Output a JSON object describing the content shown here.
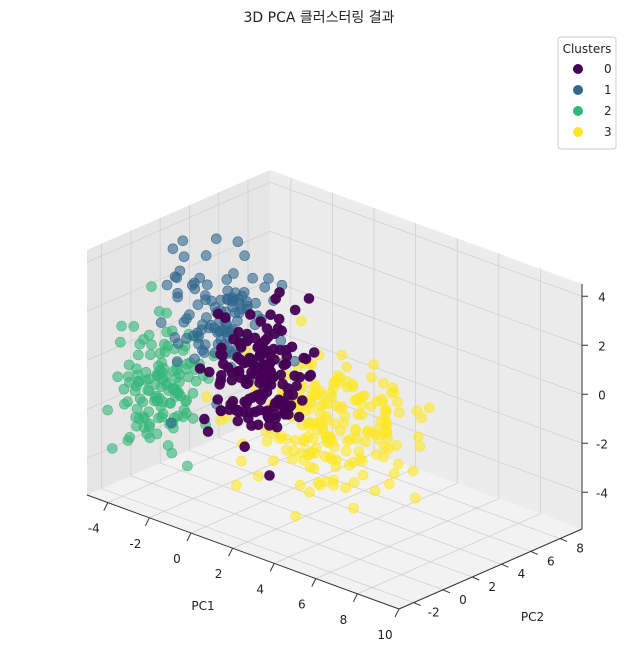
{
  "chart_data": {
    "type": "scatter",
    "projection": "3d",
    "title": "3D PCA 클러스터링 결과",
    "xlabel": "PC1",
    "ylabel": "PC2",
    "zlabel": "",
    "xlim": [
      -5,
      10
    ],
    "ylim": [
      -3,
      9.5
    ],
    "zlim": [
      -5.5,
      4.5
    ],
    "xticks": [
      -4,
      -2,
      0,
      2,
      4,
      6,
      8,
      10
    ],
    "xtick_labels": [
      "-4",
      "-2",
      "0",
      "2",
      "4",
      "6",
      "8",
      "10"
    ],
    "yticks": [
      -2,
      0,
      2,
      4,
      6,
      8
    ],
    "ytick_labels": [
      "-2",
      "0",
      "2",
      "4",
      "6",
      "8"
    ],
    "zticks": [
      -4,
      -2,
      0,
      2,
      4
    ],
    "ztick_labels": [
      "-4",
      "-2",
      "0",
      "2",
      "4"
    ],
    "grid": true,
    "legend": {
      "title": "Clusters",
      "placement": "top-right",
      "entries": [
        {
          "label": "0",
          "color": "#440154"
        },
        {
          "label": "1",
          "color": "#31688e"
        },
        {
          "label": "2",
          "color": "#35b779"
        },
        {
          "label": "3",
          "color": "#fde725"
        }
      ]
    },
    "series": [
      {
        "name": "0",
        "color": "#440154",
        "center": [
          0.5,
          1.0,
          0.0
        ],
        "spread": [
          0.9,
          1.2,
          1.2
        ],
        "count": 150,
        "sample_points": [
          [
            0.2,
            1.5,
            0.8
          ],
          [
            1.0,
            0.5,
            -0.5
          ],
          [
            -0.5,
            1.8,
            0.2
          ],
          [
            1.5,
            0.2,
            1.0
          ],
          [
            0.0,
            0.8,
            -1.2
          ]
        ]
      },
      {
        "name": "1",
        "color": "#31688e",
        "center": [
          -2.2,
          2.2,
          1.2
        ],
        "spread": [
          1.0,
          1.2,
          1.3
        ],
        "count": 110,
        "sample_points": [
          [
            -2.5,
            3.0,
            2.5
          ],
          [
            -1.8,
            1.5,
            1.0
          ],
          [
            -3.0,
            2.5,
            0.5
          ],
          [
            -2.0,
            3.5,
            3.5
          ],
          [
            -1.2,
            2.0,
            1.8
          ]
        ]
      },
      {
        "name": "2",
        "color": "#35b779",
        "center": [
          -3.2,
          -0.8,
          -1.0
        ],
        "spread": [
          0.9,
          1.0,
          1.2
        ],
        "count": 130,
        "sample_points": [
          [
            -3.5,
            -1.5,
            -1.5
          ],
          [
            -2.8,
            0.0,
            -0.5
          ],
          [
            -4.0,
            -1.0,
            -2.2
          ],
          [
            -3.0,
            -0.5,
            0.3
          ],
          [
            -2.5,
            -1.8,
            -1.0
          ]
        ]
      },
      {
        "name": "3",
        "color": "#fde725",
        "center": [
          3.2,
          2.0,
          -1.5
        ],
        "spread": [
          1.8,
          1.8,
          1.4
        ],
        "count": 200,
        "sample_points": [
          [
            4.0,
            3.0,
            -1.0
          ],
          [
            2.5,
            1.0,
            -2.5
          ],
          [
            6.0,
            2.5,
            -1.5
          ],
          [
            3.5,
            4.5,
            0.5
          ],
          [
            1.5,
            0.5,
            -3.0
          ]
        ]
      }
    ]
  }
}
